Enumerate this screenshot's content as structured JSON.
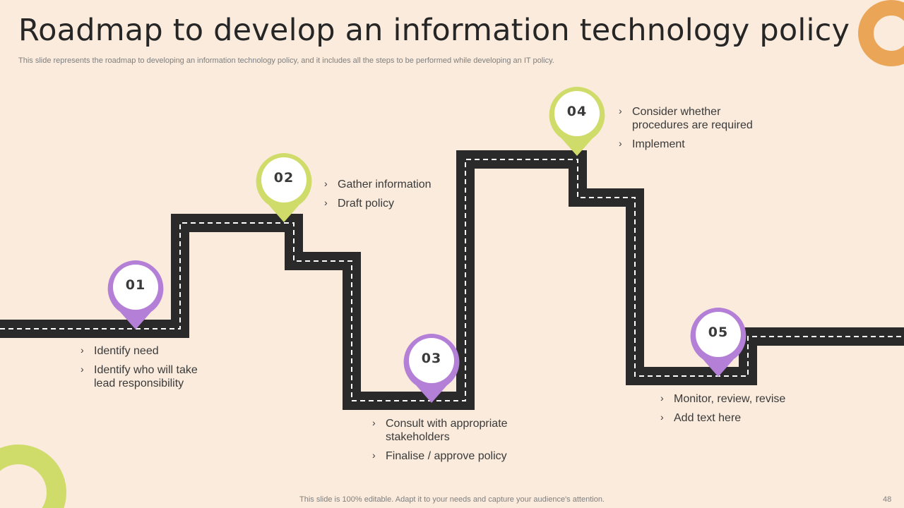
{
  "title": "Roadmap to develop an information technology policy",
  "subtitle": "This slide represents the roadmap to developing an information technology policy, and it includes all the steps to be performed while developing an IT policy.",
  "colors": {
    "background": "#faebdc",
    "road": "#2a2a2a",
    "purple": "#b47fd6",
    "green": "#cfdc6a",
    "orange": "#eba556"
  },
  "steps": [
    {
      "number": "01",
      "color": "purple",
      "items": [
        "Identify  need",
        "Identify  who will take lead responsibility"
      ]
    },
    {
      "number": "02",
      "color": "green",
      "items": [
        "Gather information",
        "Draft policy"
      ]
    },
    {
      "number": "03",
      "color": "purple",
      "items": [
        "Consult with appropriate stakeholders",
        "Finalise / approve policy"
      ]
    },
    {
      "number": "04",
      "color": "green",
      "items": [
        "Consider whether procedures are required",
        "Implement"
      ]
    },
    {
      "number": "05",
      "color": "purple",
      "items": [
        "Monitor, review, revise",
        "Add text here"
      ]
    }
  ],
  "chevron_glyph": "›",
  "footer": "This slide is 100% editable. Adapt it to your needs and capture your audience's attention.",
  "page_number": "48"
}
